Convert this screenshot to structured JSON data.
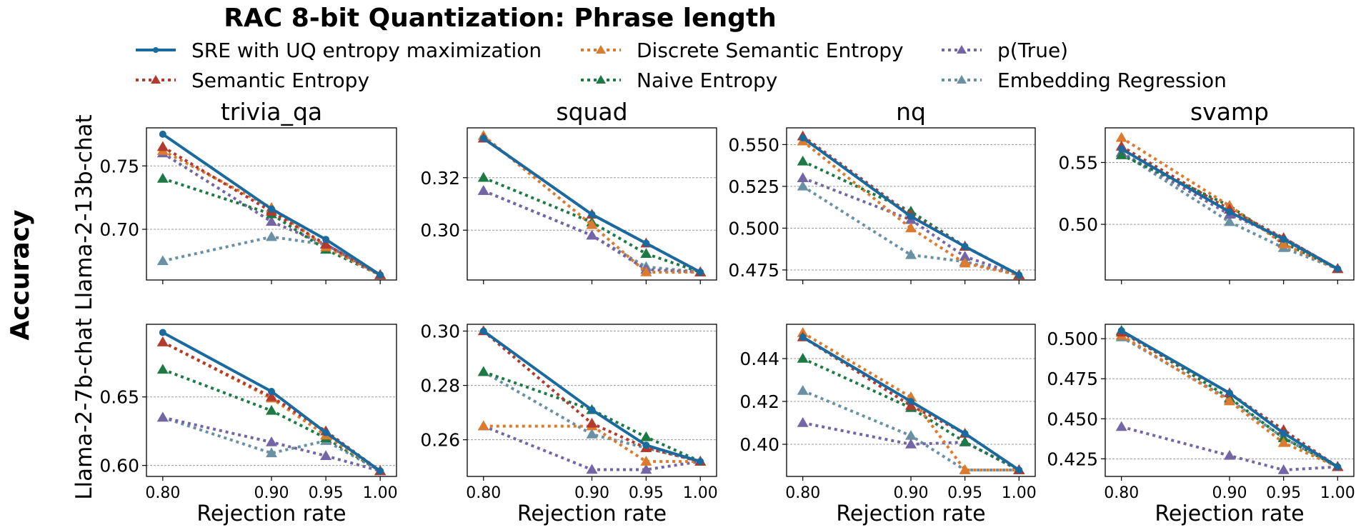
{
  "title": "RAC 8-bit Quantization: Phrase length",
  "ylabel": "Accuracy",
  "xlabel": "Rejection rate",
  "legend": [
    {
      "name": "SRE with UQ entropy maximization",
      "color": "#1a6aa0",
      "style": "solid",
      "marker": "circle"
    },
    {
      "name": "Semantic Entropy",
      "color": "#b33a2c",
      "style": "dotted",
      "marker": "triangle"
    },
    {
      "name": "Discrete Semantic Entropy",
      "color": "#dd7a2e",
      "style": "dotted",
      "marker": "triangle"
    },
    {
      "name": "Naive Entropy",
      "color": "#1e7a45",
      "style": "dotted",
      "marker": "triangle"
    },
    {
      "name": "p(True)",
      "color": "#7466a6",
      "style": "dotted",
      "marker": "triangle"
    },
    {
      "name": "Embedding Regression",
      "color": "#6a91a3",
      "style": "dotted",
      "marker": "triangle"
    }
  ],
  "chart_data": [
    {
      "type": "line",
      "dataset": "trivia_qa",
      "model": "Llama-2-13b-chat",
      "x": [
        0.8,
        0.9,
        0.95,
        1.0
      ],
      "ylim": [
        0.66,
        0.78
      ],
      "yticks": [
        "0.70",
        "0.75"
      ],
      "series": [
        {
          "name": "SRE with UQ entropy maximization",
          "values": [
            0.775,
            0.716,
            0.692,
            0.664
          ]
        },
        {
          "name": "Semantic Entropy",
          "values": [
            0.765,
            0.714,
            0.688,
            0.664
          ]
        },
        {
          "name": "Discrete Semantic Entropy",
          "values": [
            0.762,
            0.717,
            0.686,
            0.664
          ]
        },
        {
          "name": "Naive Entropy",
          "values": [
            0.74,
            0.712,
            0.684,
            0.664
          ]
        },
        {
          "name": "p(True)",
          "values": [
            0.76,
            0.706,
            0.688,
            0.664
          ]
        },
        {
          "name": "Embedding Regression",
          "values": [
            0.675,
            0.694,
            0.688,
            0.664
          ]
        }
      ]
    },
    {
      "type": "line",
      "dataset": "squad",
      "model": "Llama-2-13b-chat",
      "x": [
        0.8,
        0.9,
        0.95,
        1.0
      ],
      "ylim": [
        0.281,
        0.339
      ],
      "yticks": [
        "0.30",
        "0.32"
      ],
      "series": [
        {
          "name": "SRE with UQ entropy maximization",
          "values": [
            0.335,
            0.306,
            0.295,
            0.284
          ]
        },
        {
          "name": "Semantic Entropy",
          "values": [
            0.335,
            0.306,
            0.295,
            0.284
          ]
        },
        {
          "name": "Discrete Semantic Entropy",
          "values": [
            0.336,
            0.302,
            0.284,
            0.284
          ]
        },
        {
          "name": "Naive Entropy",
          "values": [
            0.32,
            0.303,
            0.291,
            0.284
          ]
        },
        {
          "name": "p(True)",
          "values": [
            0.315,
            0.298,
            0.285,
            0.284
          ]
        },
        {
          "name": "Embedding Regression",
          "values": [
            0.315,
            0.298,
            0.286,
            0.284
          ]
        }
      ]
    },
    {
      "type": "line",
      "dataset": "nq",
      "model": "Llama-2-13b-chat",
      "x": [
        0.8,
        0.9,
        0.95,
        1.0
      ],
      "ylim": [
        0.469,
        0.56
      ],
      "yticks": [
        "0.475",
        "0.500",
        "0.525",
        "0.550"
      ],
      "series": [
        {
          "name": "SRE with UQ entropy maximization",
          "values": [
            0.554,
            0.507,
            0.489,
            0.472
          ]
        },
        {
          "name": "Semantic Entropy",
          "values": [
            0.555,
            0.508,
            0.489,
            0.472
          ]
        },
        {
          "name": "Discrete Semantic Entropy",
          "values": [
            0.552,
            0.5,
            0.479,
            0.472
          ]
        },
        {
          "name": "Naive Entropy",
          "values": [
            0.54,
            0.51,
            0.489,
            0.472
          ]
        },
        {
          "name": "p(True)",
          "values": [
            0.53,
            0.505,
            0.483,
            0.472
          ]
        },
        {
          "name": "Embedding Regression",
          "values": [
            0.525,
            0.484,
            0.48,
            0.472
          ]
        }
      ]
    },
    {
      "type": "line",
      "dataset": "svamp",
      "model": "Llama-2-13b-chat",
      "x": [
        0.8,
        0.9,
        0.95,
        1.0
      ],
      "ylim": [
        0.455,
        0.578
      ],
      "yticks": [
        "0.50",
        "0.55"
      ],
      "series": [
        {
          "name": "SRE with UQ entropy maximization",
          "values": [
            0.561,
            0.51,
            0.488,
            0.464
          ]
        },
        {
          "name": "Semantic Entropy",
          "values": [
            0.563,
            0.512,
            0.489,
            0.464
          ]
        },
        {
          "name": "Discrete Semantic Entropy",
          "values": [
            0.57,
            0.515,
            0.484,
            0.464
          ]
        },
        {
          "name": "Naive Entropy",
          "values": [
            0.556,
            0.515,
            0.485,
            0.464
          ]
        },
        {
          "name": "p(True)",
          "values": [
            0.558,
            0.508,
            0.489,
            0.464
          ]
        },
        {
          "name": "Embedding Regression",
          "values": [
            0.558,
            0.502,
            0.481,
            0.464
          ]
        }
      ]
    },
    {
      "type": "line",
      "dataset": "trivia_qa",
      "model": "Llama-2-7b-chat",
      "x": [
        0.8,
        0.9,
        0.95,
        1.0
      ],
      "ylim": [
        0.592,
        0.703
      ],
      "yticks": [
        "0.60",
        "0.65"
      ],
      "series": [
        {
          "name": "SRE with UQ entropy maximization",
          "values": [
            0.697,
            0.654,
            0.624,
            0.596
          ]
        },
        {
          "name": "Semantic Entropy",
          "values": [
            0.69,
            0.65,
            0.625,
            0.596
          ]
        },
        {
          "name": "Discrete Semantic Entropy",
          "values": [
            0.69,
            0.649,
            0.622,
            0.596
          ]
        },
        {
          "name": "Naive Entropy",
          "values": [
            0.67,
            0.64,
            0.62,
            0.596
          ]
        },
        {
          "name": "p(True)",
          "values": [
            0.635,
            0.617,
            0.607,
            0.596
          ]
        },
        {
          "name": "Embedding Regression",
          "values": [
            0.635,
            0.609,
            0.618,
            0.596
          ]
        }
      ]
    },
    {
      "type": "line",
      "dataset": "squad",
      "model": "Llama-2-7b-chat",
      "x": [
        0.8,
        0.9,
        0.95,
        1.0
      ],
      "ylim": [
        0.2465,
        0.3025
      ],
      "yticks": [
        "0.26",
        "0.28",
        "0.30"
      ],
      "series": [
        {
          "name": "SRE with UQ entropy maximization",
          "values": [
            0.3,
            0.271,
            0.258,
            0.252
          ]
        },
        {
          "name": "Semantic Entropy",
          "values": [
            0.3,
            0.266,
            0.257,
            0.252
          ]
        },
        {
          "name": "Discrete Semantic Entropy",
          "values": [
            0.265,
            0.265,
            0.252,
            0.252
          ]
        },
        {
          "name": "Naive Entropy",
          "values": [
            0.285,
            0.271,
            0.261,
            0.252
          ]
        },
        {
          "name": "p(True)",
          "values": [
            0.265,
            0.249,
            0.249,
            0.252
          ]
        },
        {
          "name": "Embedding Regression",
          "values": [
            0.285,
            0.262,
            0.257,
            0.252
          ]
        }
      ]
    },
    {
      "type": "line",
      "dataset": "nq",
      "model": "Llama-2-7b-chat",
      "x": [
        0.8,
        0.9,
        0.95,
        1.0
      ],
      "ylim": [
        0.385,
        0.456
      ],
      "yticks": [
        "0.40",
        "0.42",
        "0.44"
      ],
      "series": [
        {
          "name": "SRE with UQ entropy maximization",
          "values": [
            0.45,
            0.42,
            0.405,
            0.388
          ]
        },
        {
          "name": "Semantic Entropy",
          "values": [
            0.45,
            0.418,
            0.405,
            0.388
          ]
        },
        {
          "name": "Discrete Semantic Entropy",
          "values": [
            0.452,
            0.422,
            0.388,
            0.388
          ]
        },
        {
          "name": "Naive Entropy",
          "values": [
            0.44,
            0.417,
            0.401,
            0.388
          ]
        },
        {
          "name": "p(True)",
          "values": [
            0.41,
            0.4,
            0.401,
            0.388
          ]
        },
        {
          "name": "Embedding Regression",
          "values": [
            0.425,
            0.404,
            0.388,
            0.388
          ]
        }
      ]
    },
    {
      "type": "line",
      "dataset": "svamp",
      "model": "Llama-2-7b-chat",
      "x": [
        0.8,
        0.9,
        0.95,
        1.0
      ],
      "ylim": [
        0.414,
        0.509
      ],
      "yticks": [
        "0.425",
        "0.450",
        "0.475",
        "0.500"
      ],
      "series": [
        {
          "name": "SRE with UQ entropy maximization",
          "values": [
            0.505,
            0.466,
            0.441,
            0.42
          ]
        },
        {
          "name": "Semantic Entropy",
          "values": [
            0.504,
            0.466,
            0.443,
            0.42
          ]
        },
        {
          "name": "Discrete Semantic Entropy",
          "values": [
            0.502,
            0.461,
            0.435,
            0.42
          ]
        },
        {
          "name": "Naive Entropy",
          "values": [
            0.505,
            0.463,
            0.438,
            0.42
          ]
        },
        {
          "name": "p(True)",
          "values": [
            0.445,
            0.427,
            0.418,
            0.42
          ]
        },
        {
          "name": "Embedding Regression",
          "values": [
            0.501,
            0.462,
            0.438,
            0.42
          ]
        }
      ]
    }
  ],
  "xticks": [
    "0.80",
    "0.90",
    "0.95",
    "1.00"
  ]
}
